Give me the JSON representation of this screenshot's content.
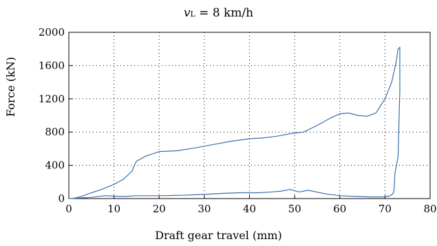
{
  "chart_data": {
    "type": "line",
    "title_italic": "v",
    "title_sub": "L",
    "title_rest": " = 8 km/h",
    "xlabel": "Draft gear travel (mm)",
    "ylabel": "Force (kN)",
    "xlim": [
      0,
      80
    ],
    "ylim": [
      0,
      2000
    ],
    "xticks": [
      0,
      10,
      20,
      30,
      40,
      50,
      60,
      70,
      80
    ],
    "yticks": [
      0,
      400,
      800,
      1200,
      1600,
      2000
    ],
    "grid": "dotted",
    "series": [
      {
        "color": "#3a6ea8",
        "points": [
          [
            0,
            0
          ],
          [
            1,
            2
          ],
          [
            3,
            30
          ],
          [
            5,
            70
          ],
          [
            7,
            105
          ],
          [
            10,
            170
          ],
          [
            12,
            230
          ],
          [
            14,
            330
          ],
          [
            14.6,
            410
          ],
          [
            15,
            450
          ],
          [
            17,
            510
          ],
          [
            20,
            565
          ],
          [
            24,
            575
          ],
          [
            28,
            610
          ],
          [
            32,
            650
          ],
          [
            36,
            690
          ],
          [
            40,
            720
          ],
          [
            43,
            730
          ],
          [
            46,
            750
          ],
          [
            49,
            780
          ],
          [
            52,
            800
          ],
          [
            55,
            880
          ],
          [
            58,
            970
          ],
          [
            60,
            1020
          ],
          [
            62,
            1030
          ],
          [
            64,
            1000
          ],
          [
            66,
            990
          ],
          [
            68,
            1030
          ],
          [
            70,
            1200
          ],
          [
            71.5,
            1400
          ],
          [
            72.5,
            1650
          ],
          [
            72.9,
            1800
          ],
          [
            73.3,
            1820
          ],
          [
            73.3,
            1300
          ],
          [
            72.9,
            500
          ],
          [
            72.2,
            300
          ],
          [
            72,
            100
          ],
          [
            71.8,
            60
          ],
          [
            71,
            30
          ],
          [
            70,
            20
          ],
          [
            67,
            20
          ],
          [
            64,
            25
          ],
          [
            60,
            35
          ],
          [
            57,
            55
          ],
          [
            53,
            100
          ],
          [
            51,
            80
          ],
          [
            49,
            110
          ],
          [
            47,
            90
          ],
          [
            45,
            80
          ],
          [
            42,
            70
          ],
          [
            38,
            70
          ],
          [
            35,
            65
          ],
          [
            30,
            50
          ],
          [
            25,
            40
          ],
          [
            20,
            35
          ],
          [
            15,
            35
          ],
          [
            12,
            25
          ],
          [
            10,
            30
          ],
          [
            8,
            35
          ],
          [
            5,
            15
          ],
          [
            2,
            5
          ],
          [
            0,
            0
          ]
        ]
      }
    ]
  }
}
